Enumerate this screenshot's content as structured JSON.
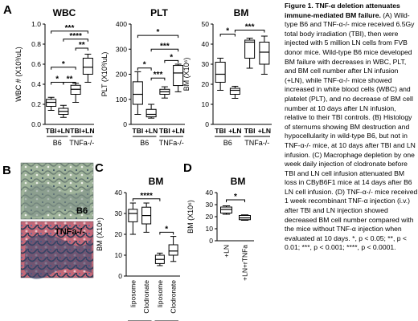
{
  "panel_letters": {
    "A": "A",
    "B": "B",
    "C": "C",
    "D": "D"
  },
  "histology": {
    "top_label": "B6",
    "bottom_label": "TNFa-/-",
    "colors": {
      "tissue_top": "#8fa48c",
      "tissue_bottom": "#b9606f",
      "marrow": "#6a7b8e"
    }
  },
  "significance_legend": "*, p < 0.05; **, p < 0.01; ***, p < 0.001; ****, p < 0.0001.",
  "caption": {
    "title": "Figure 1. TNF-α deletion attenuates immune-mediated BM failure.",
    "body": "(A) Wild-type B6 and TNF-α-/- mice received 6.5Gy total body irradiation (TBI), then were injected with 5 million LN cells from FVB donor mice. Wild-type B6 mice developed BM failure with decreases in WBC, PLT, and BM cell number after LN infusion (+LN), while TNF-α-/- mice showed increased in white blood cells (WBC) and platelet (PLT), and no decrease of BM cell number at 10 days after LN infusion, relative to their TBI controls. (B) Histology of sternums showing BM destruction and hypocellularity in wild-type B6, but not in TNF-α-/- mice, at 10 days after TBI and LN infusion. (C) Macrophage depletion by one week daily injection of clodronate before TBI and LN cell infusion attenuated BM loss in CByB6F1 mice at 14 days after B6 LN cell infusion. (D) TNF-α-/- mice received 1 week recombinant TNF-α injection (i.v.) after TBI and LN injection showed decreased BM cell number compared with the mice without TNF-α injection when evaluated at 10 days.",
    "footer": "*, p < 0.05; **, p < 0.01; ***, p < 0.001; ****, p < 0.0001."
  },
  "chart_data": [
    {
      "id": "wbc",
      "type": "box",
      "title": "WBC",
      "ylabel": "WBC # (X10³/uL)",
      "ylim": [
        0,
        1.0
      ],
      "yticks": [
        0.0,
        0.2,
        0.4,
        0.6,
        0.8,
        1.0
      ],
      "ytick_labels": [
        "0.0",
        "0.2",
        "0.4",
        "0.6",
        "0.8",
        "1.0"
      ],
      "categories": [
        "TBI",
        "+LN",
        "TBI",
        "+LN"
      ],
      "groups": [
        {
          "label": "B6",
          "from": 0,
          "to": 1
        },
        {
          "label": "TNFa-/-",
          "from": 2,
          "to": 3
        }
      ],
      "boxes": [
        {
          "min": 0.14,
          "q1": 0.18,
          "median": 0.22,
          "q3": 0.25,
          "max": 0.27
        },
        {
          "min": 0.07,
          "q1": 0.1,
          "median": 0.13,
          "q3": 0.16,
          "max": 0.19
        },
        {
          "min": 0.22,
          "q1": 0.3,
          "median": 0.35,
          "q3": 0.39,
          "max": 0.41
        },
        {
          "min": 0.42,
          "q1": 0.5,
          "median": 0.57,
          "q3": 0.66,
          "max": 0.7
        }
      ],
      "significance": [
        {
          "from": 0,
          "to": 3,
          "y": 0.93,
          "label": "***"
        },
        {
          "from": 1,
          "to": 3,
          "y": 0.85,
          "label": "****"
        },
        {
          "from": 2,
          "to": 3,
          "y": 0.76,
          "label": "**"
        },
        {
          "from": 0,
          "to": 2,
          "y": 0.57,
          "label": "*"
        },
        {
          "from": 0,
          "to": 1,
          "y": 0.42,
          "label": "*"
        },
        {
          "from": 1,
          "to": 2,
          "y": 0.42,
          "label": "**"
        }
      ]
    },
    {
      "id": "plt",
      "type": "box",
      "title": "PLT",
      "ylabel": "PLT (X10³/uL)",
      "ylim": [
        0,
        400
      ],
      "yticks": [
        0,
        100,
        200,
        300,
        400
      ],
      "ytick_labels": [
        "0",
        "100",
        "200",
        "300",
        "400"
      ],
      "categories": [
        "TBI",
        "+LN",
        "TBI",
        "+LN"
      ],
      "groups": [
        {
          "label": "B6",
          "from": 0,
          "to": 1
        },
        {
          "label": "TNFa-/-",
          "from": 2,
          "to": 3
        }
      ],
      "boxes": [
        {
          "min": 40,
          "q1": 80,
          "median": 120,
          "q3": 170,
          "max": 210
        },
        {
          "min": 25,
          "q1": 30,
          "median": 40,
          "q3": 60,
          "max": 80
        },
        {
          "min": 105,
          "q1": 120,
          "median": 130,
          "q3": 140,
          "max": 150
        },
        {
          "min": 130,
          "q1": 155,
          "median": 205,
          "q3": 235,
          "max": 240
        }
      ],
      "significance": [
        {
          "from": 0,
          "to": 3,
          "y": 355,
          "label": "*"
        },
        {
          "from": 1,
          "to": 3,
          "y": 300,
          "label": "***"
        },
        {
          "from": 2,
          "to": 3,
          "y": 255,
          "label": "*"
        },
        {
          "from": 0,
          "to": 1,
          "y": 225,
          "label": "*"
        },
        {
          "from": 1,
          "to": 2,
          "y": 185,
          "label": "***"
        }
      ]
    },
    {
      "id": "bm",
      "type": "box",
      "title": "BM",
      "ylabel": "BM (X10⁶)",
      "ylim": [
        0,
        50
      ],
      "yticks": [
        0,
        10,
        20,
        30,
        40,
        50
      ],
      "ytick_labels": [
        "0",
        "10",
        "20",
        "30",
        "40",
        "50"
      ],
      "categories": [
        "TBI",
        "+LN",
        "TBI",
        "+LN"
      ],
      "groups": [
        {
          "label": "B6",
          "from": 0,
          "to": 1
        },
        {
          "label": "TNFa-/-",
          "from": 2,
          "to": 3
        }
      ],
      "boxes": [
        {
          "min": 17,
          "q1": 21,
          "median": 25,
          "q3": 31,
          "max": 33
        },
        {
          "min": 13,
          "q1": 15,
          "median": 17,
          "q3": 18,
          "max": 19
        },
        {
          "min": 28,
          "q1": 33,
          "median": 41,
          "q3": 42,
          "max": 43
        },
        {
          "min": 25,
          "q1": 30,
          "median": 36,
          "q3": 41,
          "max": 44
        }
      ],
      "significance": [
        {
          "from": 0,
          "to": 1,
          "y": 45,
          "label": "*"
        },
        {
          "from": 1,
          "to": 3,
          "y": 47,
          "label": "***"
        }
      ]
    },
    {
      "id": "bm_c",
      "type": "box",
      "title": "BM",
      "ylabel": "BM (X10⁶)",
      "ylim": [
        0,
        40
      ],
      "yticks": [
        0,
        10,
        20,
        30,
        40
      ],
      "ytick_labels": [
        "0",
        "10",
        "20",
        "30",
        "40"
      ],
      "categories": [
        "liposome",
        "Clodronate",
        "liposome",
        "Clodronate"
      ],
      "groups": [
        {
          "label": "TBI",
          "from": 0,
          "to": 1
        },
        {
          "label": "+LN",
          "from": 2,
          "to": 3
        }
      ],
      "boxes": [
        {
          "min": 20,
          "q1": 26,
          "median": 30,
          "q3": 32,
          "max": 35
        },
        {
          "min": 21,
          "q1": 25,
          "median": 29,
          "q3": 33,
          "max": 35
        },
        {
          "min": 5,
          "q1": 6,
          "median": 8,
          "q3": 10,
          "max": 11
        },
        {
          "min": 7,
          "q1": 10,
          "median": 12,
          "q3": 15,
          "max": 19
        }
      ],
      "significance": [
        {
          "from": 0,
          "to": 2,
          "y": 37,
          "label": "****"
        },
        {
          "from": 2,
          "to": 3,
          "y": 21,
          "label": "*"
        }
      ]
    },
    {
      "id": "bm_d",
      "type": "box",
      "title": "BM",
      "ylabel": "BM (X10⁶)",
      "ylim": [
        0,
        40
      ],
      "yticks": [
        0,
        10,
        20,
        30,
        40
      ],
      "ytick_labels": [
        "0",
        "10",
        "20",
        "30",
        "40"
      ],
      "categories": [
        "+LN",
        "+LN+rTNFa"
      ],
      "groups": [],
      "boxes": [
        {
          "min": 22,
          "q1": 23,
          "median": 26,
          "q3": 28,
          "max": 29
        },
        {
          "min": 17,
          "q1": 17.5,
          "median": 19,
          "q3": 21,
          "max": 21.5
        }
      ],
      "significance": [
        {
          "from": 0,
          "to": 1,
          "y": 34,
          "label": "*"
        }
      ]
    }
  ]
}
